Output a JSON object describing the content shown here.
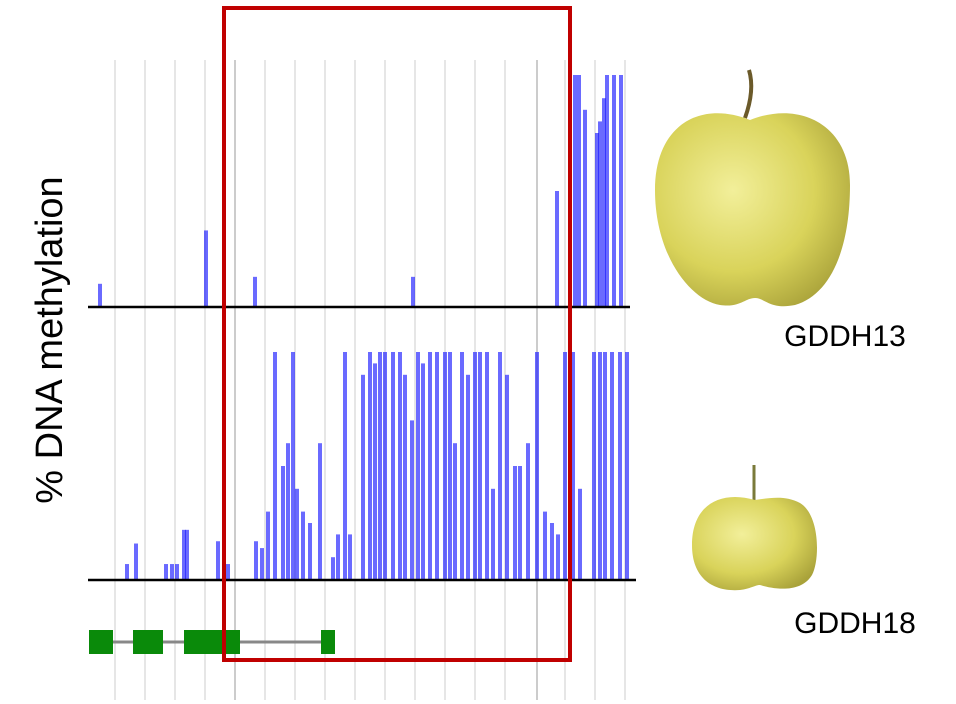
{
  "chart_data": {
    "type": "bar",
    "y_label": "% DNA methylation",
    "xlim": [
      0,
      545
    ],
    "ylim": [
      0,
      100
    ],
    "series": [
      {
        "name": "GDDH13",
        "color": "#1a1aff",
        "x": [
          10,
          116,
          165,
          323,
          467,
          480,
          485,
          489,
          495,
          507,
          510,
          514,
          517,
          524,
          531
        ],
        "values": [
          10,
          33,
          13,
          13,
          50,
          100,
          100,
          100,
          85,
          75,
          80,
          90,
          100,
          100,
          100
        ]
      },
      {
        "name": "GDDH18",
        "color": "#1a1aff",
        "x": [
          37,
          46,
          76,
          82,
          87,
          94,
          97,
          128,
          138,
          166,
          172,
          178,
          185,
          193,
          198,
          203,
          207,
          213,
          220,
          230,
          243,
          248,
          255,
          260,
          273,
          280,
          285,
          290,
          295,
          303,
          310,
          315,
          322,
          328,
          333,
          340,
          347,
          355,
          360,
          365,
          372,
          378,
          385,
          390,
          397,
          403,
          410,
          417,
          425,
          430,
          438,
          447,
          455,
          462,
          468,
          475,
          483,
          490,
          504,
          510,
          515,
          522,
          530,
          537
        ],
        "values": [
          7,
          16,
          7,
          7,
          7,
          22,
          22,
          17,
          7,
          17,
          14,
          30,
          100,
          50,
          60,
          100,
          40,
          30,
          25,
          60,
          10,
          20,
          100,
          20,
          90,
          100,
          95,
          100,
          100,
          100,
          100,
          90,
          70,
          100,
          95,
          100,
          100,
          100,
          100,
          60,
          100,
          90,
          100,
          100,
          100,
          40,
          100,
          90,
          50,
          50,
          60,
          100,
          30,
          25,
          20,
          100,
          100,
          40,
          100,
          100,
          100,
          100,
          100,
          100
        ]
      }
    ]
  }
}
